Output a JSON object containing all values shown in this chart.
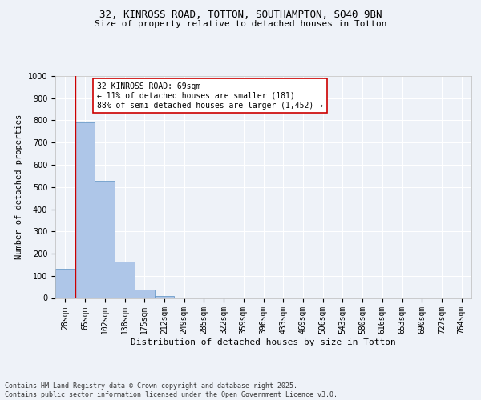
{
  "title1": "32, KINROSS ROAD, TOTTON, SOUTHAMPTON, SO40 9BN",
  "title2": "Size of property relative to detached houses in Totton",
  "xlabel": "Distribution of detached houses by size in Totton",
  "ylabel": "Number of detached properties",
  "bar_labels": [
    "28sqm",
    "65sqm",
    "102sqm",
    "138sqm",
    "175sqm",
    "212sqm",
    "249sqm",
    "285sqm",
    "322sqm",
    "359sqm",
    "396sqm",
    "433sqm",
    "469sqm",
    "506sqm",
    "543sqm",
    "580sqm",
    "616sqm",
    "653sqm",
    "690sqm",
    "727sqm",
    "764sqm"
  ],
  "bar_values": [
    133,
    790,
    527,
    163,
    38,
    10,
    0,
    0,
    0,
    0,
    0,
    0,
    0,
    0,
    0,
    0,
    0,
    0,
    0,
    0,
    0
  ],
  "bar_color": "#aec6e8",
  "bar_edgecolor": "#5a8fc2",
  "vline_x_index": 1,
  "vline_color": "#cc0000",
  "ylim": [
    0,
    1000
  ],
  "yticks": [
    0,
    100,
    200,
    300,
    400,
    500,
    600,
    700,
    800,
    900,
    1000
  ],
  "annotation_text": "32 KINROSS ROAD: 69sqm\n← 11% of detached houses are smaller (181)\n88% of semi-detached houses are larger (1,452) →",
  "annotation_box_color": "#ffffff",
  "annotation_box_edgecolor": "#cc0000",
  "footer_text": "Contains HM Land Registry data © Crown copyright and database right 2025.\nContains public sector information licensed under the Open Government Licence v3.0.",
  "background_color": "#eef2f8",
  "grid_color": "#ffffff",
  "title1_fontsize": 9,
  "title2_fontsize": 8,
  "ylabel_fontsize": 7.5,
  "xlabel_fontsize": 8,
  "tick_fontsize": 7,
  "annot_fontsize": 7,
  "footer_fontsize": 6
}
